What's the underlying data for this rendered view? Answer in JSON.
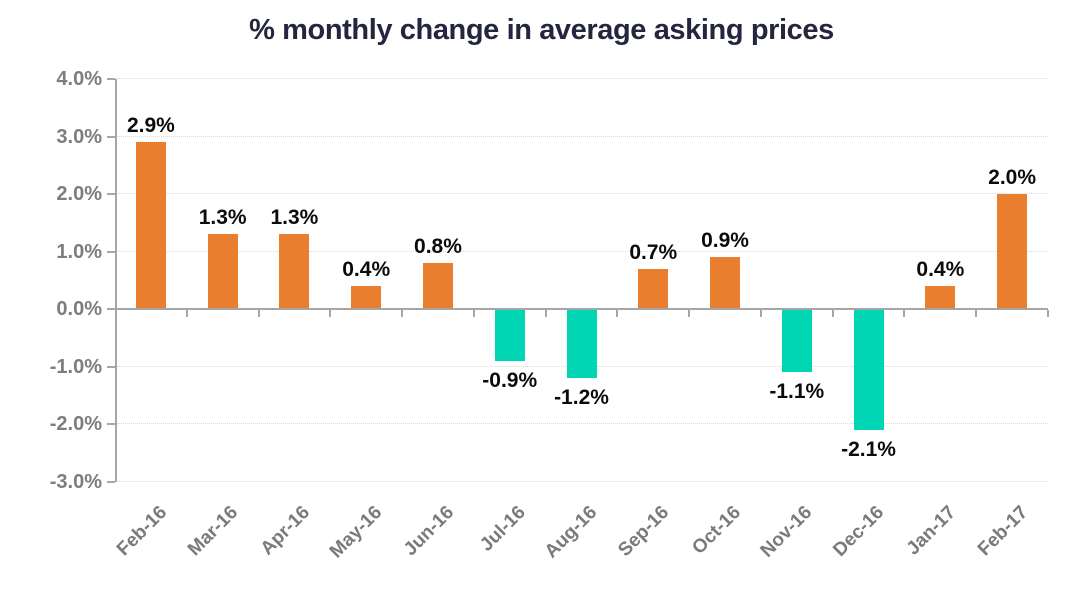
{
  "title": "% monthly change in average asking prices",
  "chart_data": {
    "type": "bar",
    "title": "% monthly change in average asking prices",
    "categories": [
      "Feb-16",
      "Mar-16",
      "Apr-16",
      "May-16",
      "Jun-16",
      "Jul-16",
      "Aug-16",
      "Sep-16",
      "Oct-16",
      "Nov-16",
      "Dec-16",
      "Jan-17",
      "Feb-17"
    ],
    "values": [
      2.9,
      1.3,
      1.3,
      0.4,
      0.8,
      -0.9,
      -1.2,
      0.7,
      0.9,
      -1.1,
      -2.1,
      0.4,
      2.0
    ],
    "value_labels": [
      "2.9%",
      "1.3%",
      "1.3%",
      "0.4%",
      "0.8%",
      "-0.9%",
      "-1.2%",
      "0.7%",
      "0.9%",
      "-1.1%",
      "-2.1%",
      "0.4%",
      "2.0%"
    ],
    "xlabel": "",
    "ylabel": "",
    "ylim": [
      -3.0,
      4.0
    ],
    "ytick_step": 1.0,
    "ytick_labels": [
      "4.0%",
      "3.0%",
      "2.0%",
      "1.0%",
      "0.0%",
      "-1.0%",
      "-2.0%",
      "-3.0%"
    ],
    "grid": "horizontal-dotted",
    "legend": "none",
    "colors": {
      "positive_bar": "#E87E2E",
      "negative_bar": "#00D5B4",
      "axis_line": "#A6A6A6",
      "gridline": "#D9D9D9",
      "tick_label": "#7D7D7D",
      "value_label": "#0B0B0B",
      "title": "#23263E",
      "background": "#FFFFFF"
    }
  }
}
